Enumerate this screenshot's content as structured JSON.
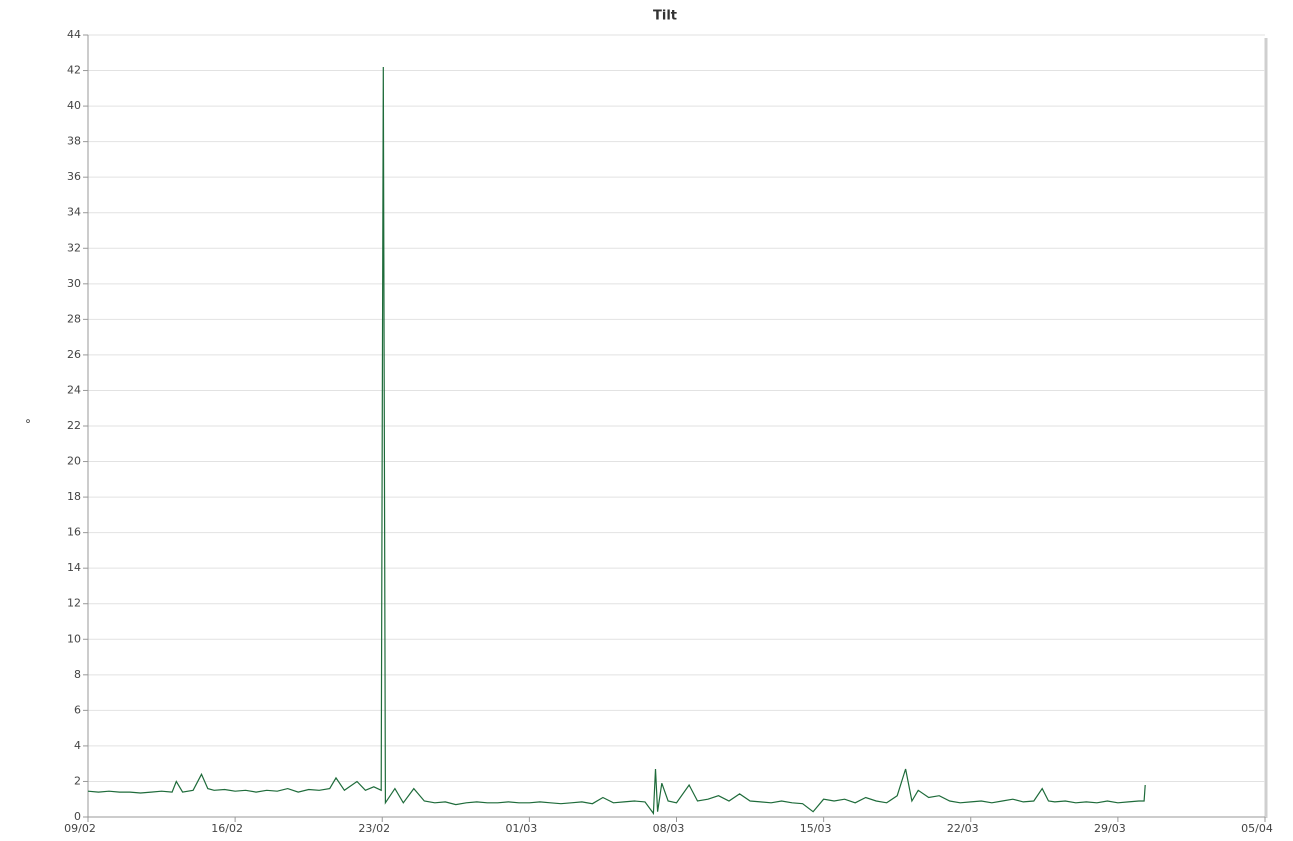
{
  "chart_data": {
    "type": "line",
    "title": "Tilt",
    "y_label": "°",
    "x": [
      0,
      0.5,
      1,
      1.5,
      2,
      2.5,
      3,
      3.5,
      4,
      4.2,
      4.5,
      5,
      5.4,
      5.7,
      6,
      6.5,
      7,
      7.5,
      8,
      8.5,
      9,
      9.5,
      10,
      10.5,
      11,
      11.5,
      11.8,
      12.2,
      12.8,
      13.2,
      13.6,
      13.95,
      14.05,
      14.15,
      14.6,
      15,
      15.5,
      16,
      16.5,
      17,
      17.5,
      18,
      18.5,
      19,
      19.5,
      20,
      20.5,
      21,
      21.5,
      22,
      22.5,
      23,
      23.5,
      24,
      24.5,
      25,
      25.5,
      26,
      26.5,
      26.9,
      27,
      27.1,
      27.3,
      27.6,
      28,
      28.6,
      29,
      29.5,
      30,
      30.5,
      31,
      31.5,
      32,
      32.5,
      33,
      33.5,
      34,
      34.5,
      35,
      35.5,
      36,
      36.5,
      37,
      37.5,
      38,
      38.5,
      38.9,
      39.2,
      39.5,
      40,
      40.5,
      41,
      41.5,
      42,
      42.5,
      43,
      43.5,
      44,
      44.5,
      45,
      45.4,
      45.7,
      46,
      46.5,
      47,
      47.5,
      48,
      48.5,
      49,
      49.5,
      50,
      50.25,
      50.3
    ],
    "series": [
      {
        "name": "Tilt",
        "color": "#1e6b3a",
        "values": [
          1.45,
          1.4,
          1.45,
          1.4,
          1.4,
          1.35,
          1.4,
          1.45,
          1.4,
          2.0,
          1.4,
          1.5,
          2.4,
          1.6,
          1.5,
          1.55,
          1.45,
          1.5,
          1.4,
          1.5,
          1.45,
          1.6,
          1.4,
          1.55,
          1.5,
          1.6,
          2.2,
          1.5,
          2.0,
          1.5,
          1.7,
          1.5,
          42.2,
          0.8,
          1.6,
          0.8,
          1.6,
          0.9,
          0.8,
          0.85,
          0.7,
          0.8,
          0.85,
          0.8,
          0.8,
          0.85,
          0.8,
          0.8,
          0.85,
          0.8,
          0.75,
          0.8,
          0.85,
          0.75,
          1.1,
          0.8,
          0.85,
          0.9,
          0.85,
          0.2,
          2.7,
          0.3,
          1.9,
          0.9,
          0.8,
          1.8,
          0.9,
          1.0,
          1.2,
          0.9,
          1.3,
          0.9,
          0.85,
          0.8,
          0.9,
          0.8,
          0.75,
          0.3,
          1.0,
          0.9,
          1.0,
          0.8,
          1.1,
          0.9,
          0.8,
          1.2,
          2.7,
          0.9,
          1.5,
          1.1,
          1.2,
          0.9,
          0.8,
          0.85,
          0.9,
          0.8,
          0.9,
          1.0,
          0.85,
          0.9,
          1.6,
          0.9,
          0.85,
          0.9,
          0.8,
          0.85,
          0.8,
          0.9,
          0.8,
          0.85,
          0.9,
          0.9,
          1.8
        ]
      }
    ],
    "xlim": [
      0,
      56
    ],
    "xticks": [
      {
        "value": 0,
        "label": "09/02"
      },
      {
        "value": 7,
        "label": "16/02"
      },
      {
        "value": 14,
        "label": "23/02"
      },
      {
        "value": 21,
        "label": "01/03"
      },
      {
        "value": 28,
        "label": "08/03"
      },
      {
        "value": 35,
        "label": "15/03"
      },
      {
        "value": 42,
        "label": "22/03"
      },
      {
        "value": 49,
        "label": "29/03"
      },
      {
        "value": 56,
        "label": "05/04"
      }
    ],
    "ylim": [
      0,
      44
    ],
    "yticks": [
      0,
      2,
      4,
      6,
      8,
      10,
      12,
      14,
      16,
      18,
      20,
      22,
      24,
      26,
      28,
      30,
      32,
      34,
      36,
      38,
      40,
      42,
      44
    ],
    "grid": true
  }
}
